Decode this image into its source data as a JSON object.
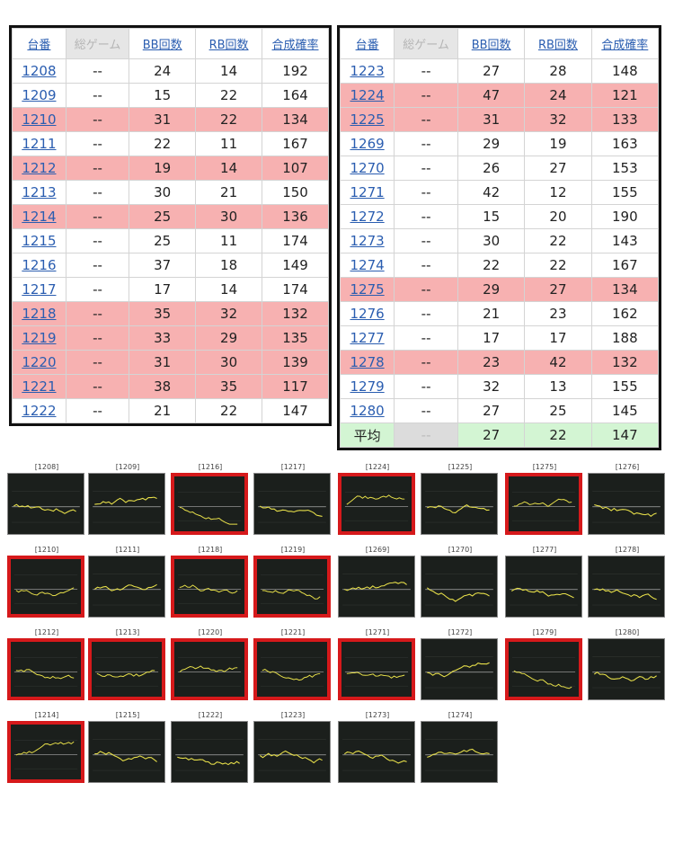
{
  "table_left": {
    "headers": [
      "台番",
      "総ゲーム",
      "BB回数",
      "RB回数",
      "合成確率"
    ],
    "rows": [
      {
        "no": "1208",
        "games": "--",
        "bb": "24",
        "rb": "14",
        "prob": "192",
        "hl": false
      },
      {
        "no": "1209",
        "games": "--",
        "bb": "15",
        "rb": "22",
        "prob": "164",
        "hl": false
      },
      {
        "no": "1210",
        "games": "--",
        "bb": "31",
        "rb": "22",
        "prob": "134",
        "hl": true
      },
      {
        "no": "1211",
        "games": "--",
        "bb": "22",
        "rb": "11",
        "prob": "167",
        "hl": false
      },
      {
        "no": "1212",
        "games": "--",
        "bb": "19",
        "rb": "14",
        "prob": "107",
        "hl": true
      },
      {
        "no": "1213",
        "games": "--",
        "bb": "30",
        "rb": "21",
        "prob": "150",
        "hl": false
      },
      {
        "no": "1214",
        "games": "--",
        "bb": "25",
        "rb": "30",
        "prob": "136",
        "hl": true
      },
      {
        "no": "1215",
        "games": "--",
        "bb": "25",
        "rb": "11",
        "prob": "174",
        "hl": false
      },
      {
        "no": "1216",
        "games": "--",
        "bb": "37",
        "rb": "18",
        "prob": "149",
        "hl": false
      },
      {
        "no": "1217",
        "games": "--",
        "bb": "17",
        "rb": "14",
        "prob": "174",
        "hl": false
      },
      {
        "no": "1218",
        "games": "--",
        "bb": "35",
        "rb": "32",
        "prob": "132",
        "hl": true
      },
      {
        "no": "1219",
        "games": "--",
        "bb": "33",
        "rb": "29",
        "prob": "135",
        "hl": true
      },
      {
        "no": "1220",
        "games": "--",
        "bb": "31",
        "rb": "30",
        "prob": "139",
        "hl": true
      },
      {
        "no": "1221",
        "games": "--",
        "bb": "38",
        "rb": "35",
        "prob": "117",
        "hl": true
      },
      {
        "no": "1222",
        "games": "--",
        "bb": "21",
        "rb": "22",
        "prob": "147",
        "hl": false
      }
    ]
  },
  "table_right": {
    "headers": [
      "台番",
      "総ゲーム",
      "BB回数",
      "RB回数",
      "合成確率"
    ],
    "rows": [
      {
        "no": "1223",
        "games": "--",
        "bb": "27",
        "rb": "28",
        "prob": "148",
        "hl": false
      },
      {
        "no": "1224",
        "games": "--",
        "bb": "47",
        "rb": "24",
        "prob": "121",
        "hl": true
      },
      {
        "no": "1225",
        "games": "--",
        "bb": "31",
        "rb": "32",
        "prob": "133",
        "hl": true
      },
      {
        "no": "1269",
        "games": "--",
        "bb": "29",
        "rb": "19",
        "prob": "163",
        "hl": false
      },
      {
        "no": "1270",
        "games": "--",
        "bb": "26",
        "rb": "27",
        "prob": "153",
        "hl": false
      },
      {
        "no": "1271",
        "games": "--",
        "bb": "42",
        "rb": "12",
        "prob": "155",
        "hl": false
      },
      {
        "no": "1272",
        "games": "--",
        "bb": "15",
        "rb": "20",
        "prob": "190",
        "hl": false
      },
      {
        "no": "1273",
        "games": "--",
        "bb": "30",
        "rb": "22",
        "prob": "143",
        "hl": false
      },
      {
        "no": "1274",
        "games": "--",
        "bb": "22",
        "rb": "22",
        "prob": "167",
        "hl": false
      },
      {
        "no": "1275",
        "games": "--",
        "bb": "29",
        "rb": "27",
        "prob": "134",
        "hl": true
      },
      {
        "no": "1276",
        "games": "--",
        "bb": "21",
        "rb": "23",
        "prob": "162",
        "hl": false
      },
      {
        "no": "1277",
        "games": "--",
        "bb": "17",
        "rb": "17",
        "prob": "188",
        "hl": false
      },
      {
        "no": "1278",
        "games": "--",
        "bb": "23",
        "rb": "42",
        "prob": "132",
        "hl": true
      },
      {
        "no": "1279",
        "games": "--",
        "bb": "32",
        "rb": "13",
        "prob": "155",
        "hl": false
      },
      {
        "no": "1280",
        "games": "--",
        "bb": "27",
        "rb": "25",
        "prob": "145",
        "hl": false
      }
    ],
    "average": {
      "label": "平均",
      "games": "--",
      "bb": "27",
      "rb": "22",
      "prob": "147"
    }
  },
  "thumbnails": [
    {
      "label": "[1208]",
      "selected": false
    },
    {
      "label": "[1209]",
      "selected": false
    },
    {
      "label": "[1216]",
      "selected": true
    },
    {
      "label": "[1217]",
      "selected": false
    },
    {
      "label": "[1224]",
      "selected": true
    },
    {
      "label": "[1225]",
      "selected": false
    },
    {
      "label": "[1275]",
      "selected": true
    },
    {
      "label": "[1276]",
      "selected": false
    },
    {
      "label": "[1210]",
      "selected": true
    },
    {
      "label": "[1211]",
      "selected": false
    },
    {
      "label": "[1218]",
      "selected": true
    },
    {
      "label": "[1219]",
      "selected": true
    },
    {
      "label": "[1269]",
      "selected": false
    },
    {
      "label": "[1270]",
      "selected": false
    },
    {
      "label": "[1277]",
      "selected": false
    },
    {
      "label": "[1278]",
      "selected": false
    },
    {
      "label": "[1212]",
      "selected": true
    },
    {
      "label": "[1213]",
      "selected": true
    },
    {
      "label": "[1220]",
      "selected": true
    },
    {
      "label": "[1221]",
      "selected": true
    },
    {
      "label": "[1271]",
      "selected": true
    },
    {
      "label": "[1272]",
      "selected": false
    },
    {
      "label": "[1279]",
      "selected": true
    },
    {
      "label": "[1280]",
      "selected": false
    },
    {
      "label": "[1214]",
      "selected": true
    },
    {
      "label": "[1215]",
      "selected": false
    },
    {
      "label": "[1222]",
      "selected": false
    },
    {
      "label": "[1223]",
      "selected": false
    },
    {
      "label": "[1273]",
      "selected": false
    },
    {
      "label": "[1274]",
      "selected": false
    }
  ],
  "colors": {
    "highlight": "#f7b1b1",
    "average_bg": "#d3f5d3",
    "selected_border": "#d6191b",
    "graph_line": "#e8e04a"
  }
}
